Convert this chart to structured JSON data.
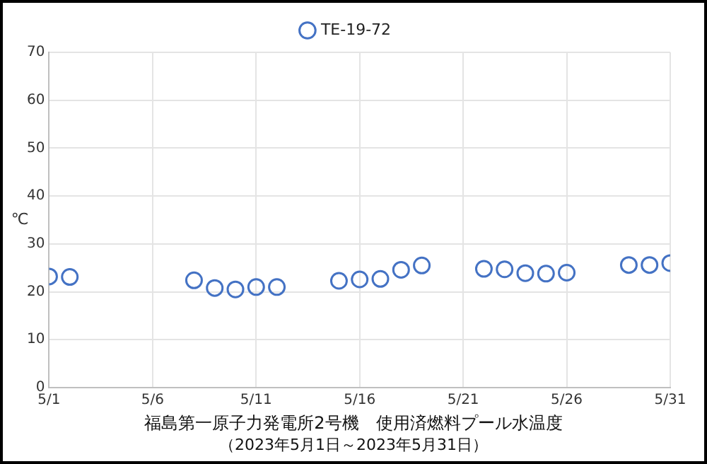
{
  "chart_data": {
    "type": "scatter",
    "title": "福島第一原子力発電所2号機　使用済燃料プール水温度",
    "subtitle": "（2023年5月1日～2023年5月31日）",
    "ylabel": "℃",
    "series": [
      {
        "name": "TE-19-72",
        "color": "#4472c4",
        "x": [
          "--05-01",
          "--05-02",
          "--05-08",
          "--05-09",
          "--05-10",
          "--05-11",
          "--05-12",
          "--05-15",
          "--05-16",
          "--05-17",
          "--05-18",
          "--05-19",
          "--05-22",
          "--05-23",
          "--05-24",
          "--05-25",
          "--05-26",
          "--05-29",
          "--05-30",
          "--05-31"
        ],
        "values": [
          23.2,
          23.1,
          22.4,
          20.8,
          20.5,
          21.0,
          21.0,
          22.3,
          22.6,
          22.7,
          24.6,
          25.5,
          24.8,
          24.7,
          23.9,
          23.8,
          24.0,
          25.6,
          25.6,
          26.0
        ]
      }
    ],
    "xlim": [
      "--05-01",
      "--05-31"
    ],
    "xticks": [
      {
        "value": "--05-01",
        "label": "5/1"
      },
      {
        "value": "--05-06",
        "label": "5/6"
      },
      {
        "value": "--05-11",
        "label": "5/11"
      },
      {
        "value": "--05-16",
        "label": "5/16"
      },
      {
        "value": "--05-21",
        "label": "5/21"
      },
      {
        "value": "--05-26",
        "label": "5/26"
      },
      {
        "value": "--05-31",
        "label": "5/31"
      }
    ],
    "ylim": [
      0,
      70
    ],
    "yticks": [
      0,
      10,
      20,
      30,
      40,
      50,
      60,
      70
    ],
    "grid": true,
    "legend": "top",
    "marker": "circle"
  }
}
